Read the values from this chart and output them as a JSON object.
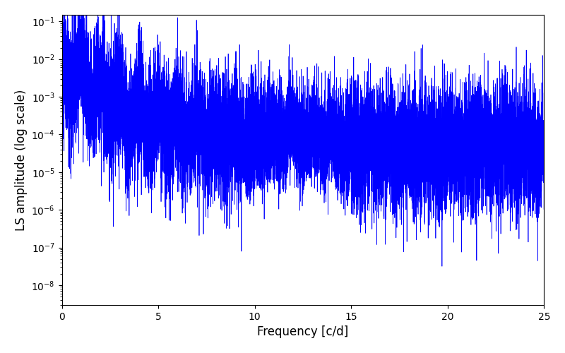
{
  "xlabel": "Frequency [c/d]",
  "ylabel": "LS amplitude (log scale)",
  "xlim": [
    0,
    25
  ],
  "ylim_log": [
    3e-09,
    0.15
  ],
  "line_color": "blue",
  "line_width": 0.5,
  "background_color": "#ffffff",
  "figsize": [
    8.0,
    5.0
  ],
  "dpi": 100,
  "freq_max": 25.0,
  "n_points": 15000,
  "seed": 12345
}
